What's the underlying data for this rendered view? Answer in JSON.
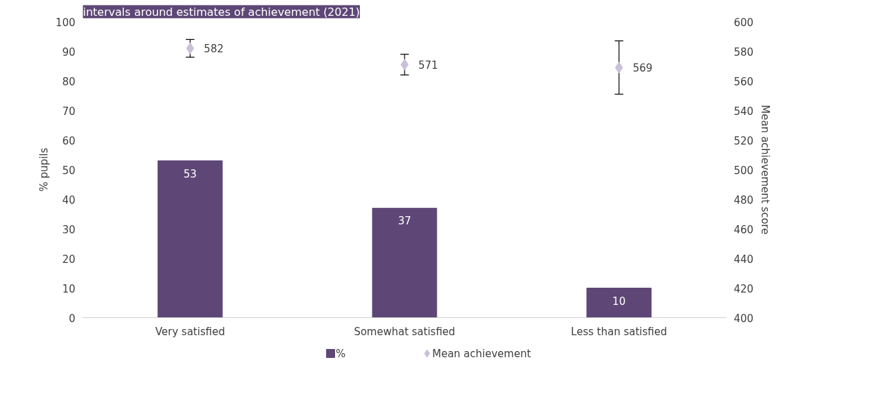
{
  "chart_data": {
    "type": "bar",
    "title": "intervals around estimates of achievement (2021)",
    "categories": [
      "Very satisfied",
      "Somewhat satisfied",
      "Less than satisfied"
    ],
    "ylabel": "% pupils",
    "y2label": "Mean achievement score",
    "ylim": [
      0,
      100
    ],
    "yticks": [
      0,
      10,
      20,
      30,
      40,
      50,
      60,
      70,
      80,
      90,
      100
    ],
    "y2lim": [
      400,
      600
    ],
    "y2ticks": [
      400,
      420,
      440,
      460,
      480,
      500,
      520,
      540,
      560,
      580,
      600
    ],
    "series": [
      {
        "name": "%",
        "color": "#5e4776",
        "values": [
          53,
          37,
          10
        ],
        "data_labels": true
      },
      {
        "name": "Mean achievement",
        "type": "scatter",
        "axis": "y2",
        "marker": "diamond",
        "color": "#cbc0da",
        "values": [
          582,
          571,
          569
        ],
        "errors": [
          6,
          7,
          18
        ],
        "data_labels": true
      }
    ],
    "grid": false,
    "legend": "bottom"
  }
}
